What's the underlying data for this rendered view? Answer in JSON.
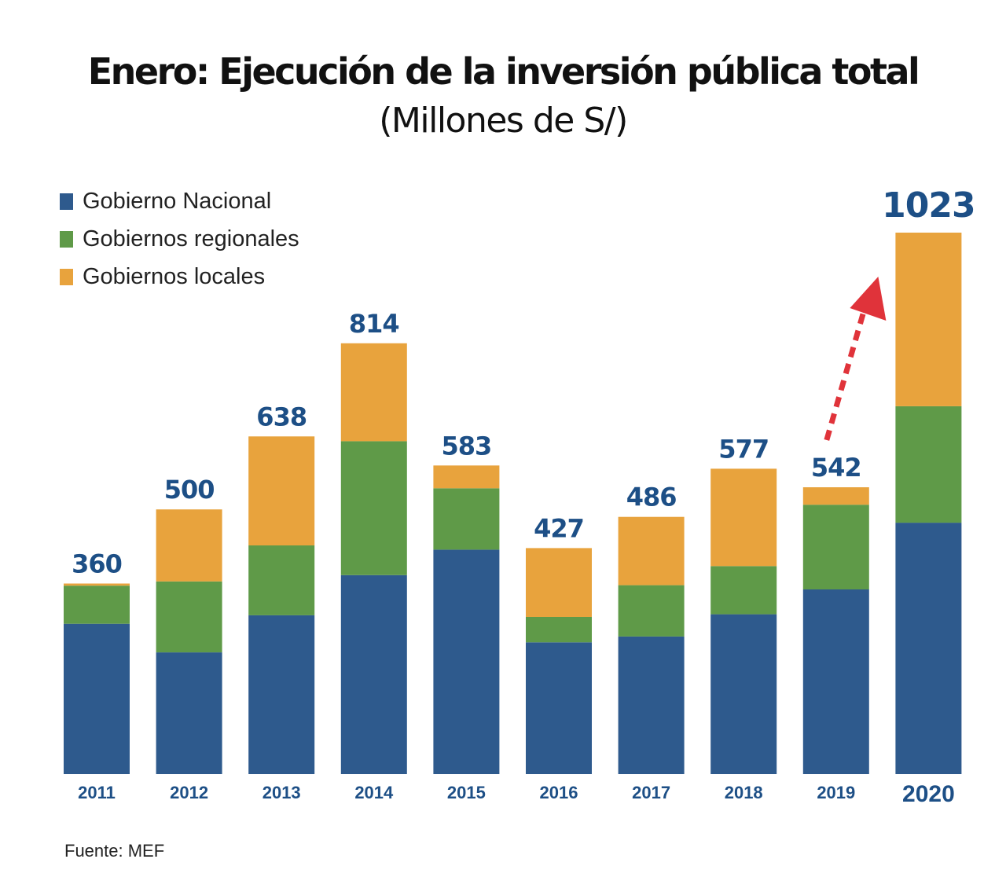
{
  "title": "Enero: Ejecución de la inversión pública total",
  "subtitle": "(Millones de S/)",
  "source": "Fuente: MEF",
  "colors": {
    "nacional": "#2e5a8d",
    "regionales": "#5f9a48",
    "locales": "#e8a33d",
    "labels": "#1d4f86",
    "arrow": "#e0333a"
  },
  "chart_data": {
    "type": "bar",
    "stacked": true,
    "legend_position": "top-left",
    "categories": [
      "2011",
      "2012",
      "2013",
      "2014",
      "2015",
      "2016",
      "2017",
      "2018",
      "2019",
      "2020"
    ],
    "totals": [
      360,
      500,
      638,
      814,
      583,
      427,
      486,
      577,
      542,
      1023
    ],
    "total_labels": [
      "360",
      "500",
      "638",
      "814",
      "583",
      "427",
      "486",
      "577",
      "542",
      "1023"
    ],
    "series": [
      {
        "name": "Gobierno Nacional",
        "values": [
          284,
          230,
          300,
          376,
          424,
          249,
          260,
          302,
          349,
          475
        ]
      },
      {
        "name": "Gobiernos regionales",
        "values": [
          72,
          134,
          132,
          253,
          116,
          48,
          97,
          91,
          160,
          220
        ]
      },
      {
        "name": "Gobiernos locales",
        "values": [
          4,
          136,
          206,
          185,
          43,
          130,
          129,
          184,
          33,
          328
        ]
      }
    ],
    "ylim": [
      0,
      1023
    ],
    "grid": false
  }
}
